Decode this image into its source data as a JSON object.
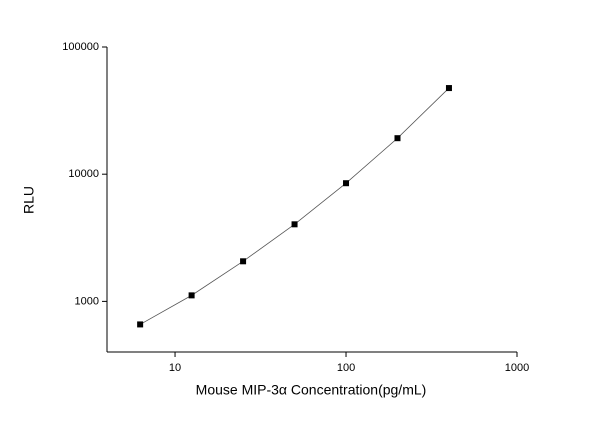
{
  "chart_data": {
    "type": "scatter",
    "x_label": "Mouse MIP-3α  Concentration(pg/mL)",
    "y_label": "RLU",
    "x_log": true,
    "y_log": true,
    "xlim": [
      4,
      1000
    ],
    "ylim": [
      400,
      100000
    ],
    "xticks": [
      10,
      100,
      1000
    ],
    "yticks": [
      1000,
      10000,
      100000
    ],
    "series": [
      {
        "color": "#000000",
        "line_color": "#555555",
        "x": [
          6.25,
          12.5,
          25,
          50,
          100,
          200,
          400
        ],
        "values": [
          659,
          1115,
          2066,
          4036,
          8494,
          19190,
          47550
        ]
      }
    ]
  }
}
